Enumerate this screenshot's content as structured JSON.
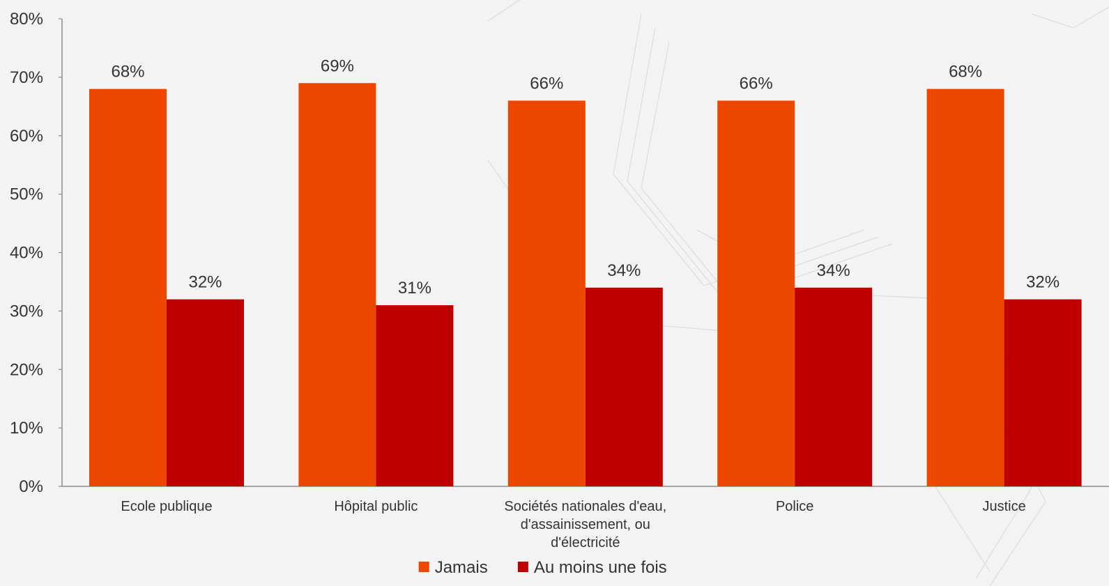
{
  "chart_data": {
    "type": "bar",
    "categories": [
      "Ecole publique",
      "Hôpital public",
      "Sociétés nationales d'eau, d'assainissement, ou d'électricité",
      "Police",
      "Justice"
    ],
    "category_label_lines": [
      [
        "Ecole publique"
      ],
      [
        "Hôpital public"
      ],
      [
        "Sociétés nationales d'eau,",
        "d'assainissement, ou",
        "d'électricité"
      ],
      [
        "Police"
      ],
      [
        "Justice"
      ]
    ],
    "series": [
      {
        "name": "Jamais",
        "values": [
          68,
          69,
          66,
          66,
          68
        ],
        "labels": [
          "68%",
          "69%",
          "66%",
          "66%",
          "68%"
        ],
        "color": "#ee4700"
      },
      {
        "name": "Au moins une fois",
        "values": [
          32,
          31,
          34,
          34,
          32
        ],
        "labels": [
          "32%",
          "31%",
          "34%",
          "34%",
          "32%"
        ],
        "color": "#c00000"
      }
    ],
    "ylim": [
      0,
      80
    ],
    "y_ticks": [
      0,
      10,
      20,
      30,
      40,
      50,
      60,
      70,
      80
    ],
    "y_tick_labels": [
      "0%",
      "10%",
      "20%",
      "30%",
      "40%",
      "50%",
      "60%",
      "70%",
      "80%"
    ],
    "grid": false,
    "legend_position": "bottom",
    "title": "",
    "xlabel": "",
    "ylabel": ""
  }
}
